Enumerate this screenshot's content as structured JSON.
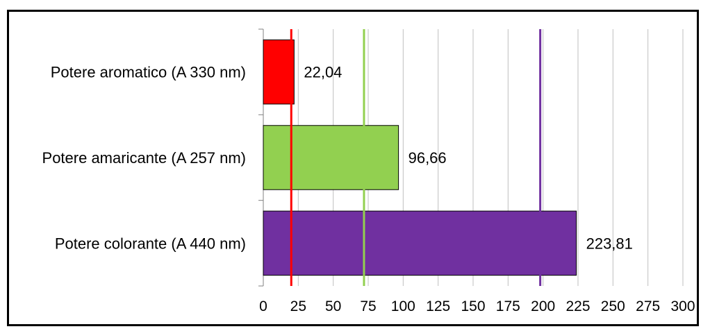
{
  "chart_data": {
    "type": "bar",
    "orientation": "horizontal",
    "categories": [
      "Potere aromatico (A 330 nm)",
      "Potere amaricante (A 257 nm)",
      "Potere colorante (A 440 nm)"
    ],
    "values": [
      22.04,
      96.66,
      223.81
    ],
    "data_labels": [
      "22,04",
      "96,66",
      "223,81"
    ],
    "colors": [
      "#ff0000",
      "#92d050",
      "#7030a0"
    ],
    "xlim": [
      0,
      300
    ],
    "xticks": [
      0,
      25,
      50,
      75,
      100,
      125,
      150,
      175,
      200,
      225,
      250,
      275,
      300
    ],
    "grid": true,
    "reference_lines": [
      {
        "value": 20,
        "color": "#ff0000"
      },
      {
        "value": 72,
        "color": "#92d050"
      },
      {
        "value": 198,
        "color": "#7030a0"
      }
    ]
  }
}
